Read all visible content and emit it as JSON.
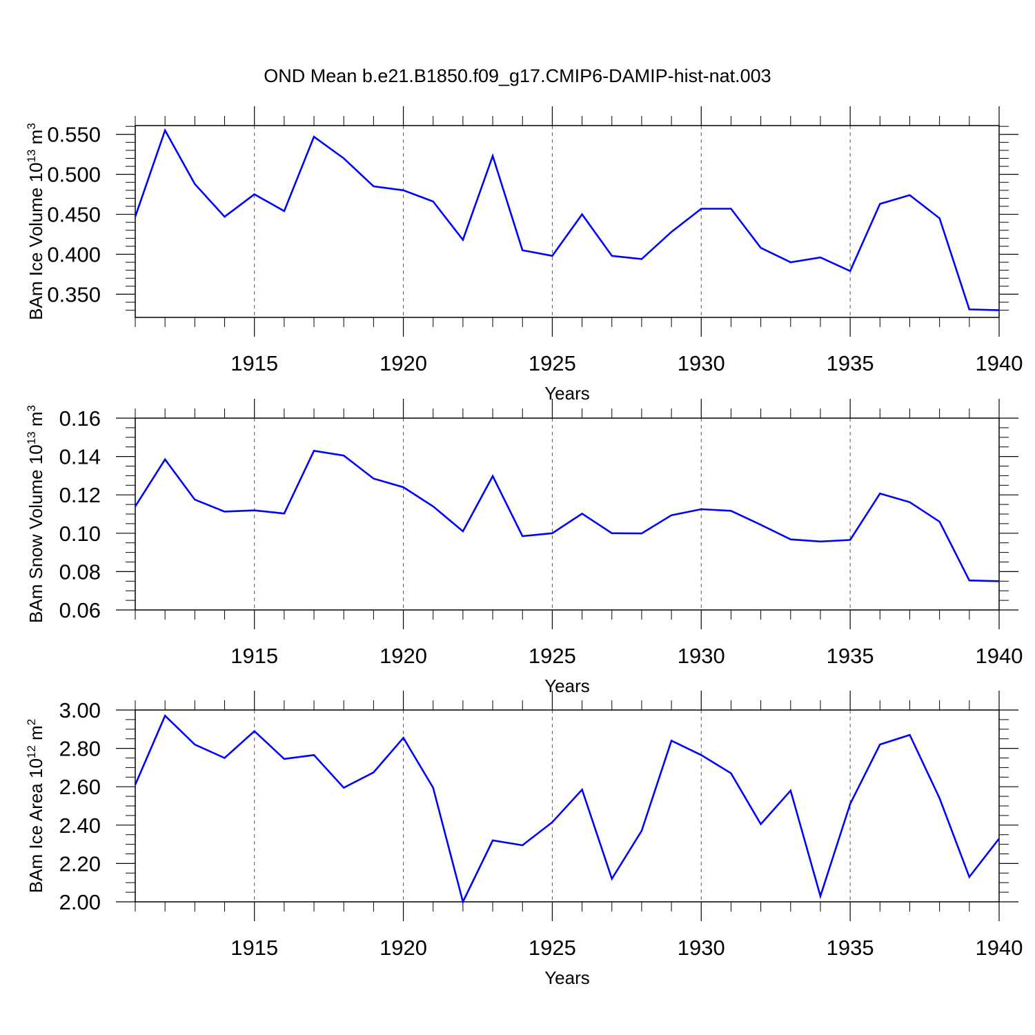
{
  "title": "OND Mean b.e21.B1850.f09_g17.CMIP6-DAMIP-hist-nat.003",
  "colors": {
    "line": "#0000ff",
    "axis": "#000000",
    "grid": "#555555",
    "background": "#ffffff"
  },
  "chart_data": [
    {
      "type": "line",
      "name": "ice-volume",
      "ylabel": {
        "main": "BAm Ice Volume 10",
        "exp": "13",
        "unit": " m",
        "unit_exp": "3"
      },
      "xlabel": "Years",
      "xlim": [
        1911,
        1940
      ],
      "ylim": [
        0.321,
        0.561
      ],
      "xticks": [
        1915,
        1920,
        1925,
        1930,
        1935,
        1940
      ],
      "yticks": [
        0.35,
        0.4,
        0.45,
        0.5,
        0.55
      ],
      "ytick_labels": [
        "0.350",
        "0.400",
        "0.450",
        "0.500",
        "0.550"
      ],
      "x_minor_step": 1,
      "y_minor_step": 0.01,
      "grid": "vertical dashed at major x ticks",
      "x": [
        1911,
        1912,
        1913,
        1914,
        1915,
        1916,
        1917,
        1918,
        1919,
        1920,
        1921,
        1922,
        1923,
        1924,
        1925,
        1926,
        1927,
        1928,
        1929,
        1930,
        1931,
        1932,
        1933,
        1934,
        1935,
        1936,
        1937,
        1938,
        1939,
        1940
      ],
      "values": [
        0.447,
        0.555,
        0.488,
        0.447,
        0.475,
        0.454,
        0.547,
        0.52,
        0.485,
        0.48,
        0.466,
        0.418,
        0.523,
        0.405,
        0.398,
        0.45,
        0.398,
        0.394,
        0.428,
        0.457,
        0.457,
        0.408,
        0.39,
        0.396,
        0.379,
        0.463,
        0.474,
        0.445,
        0.331,
        0.33
      ]
    },
    {
      "type": "line",
      "name": "snow-volume",
      "ylabel": {
        "main": "BAm Snow Volume 10",
        "exp": "13",
        "unit": " m",
        "unit_exp": "3"
      },
      "xlabel": "Years",
      "xlim": [
        1911,
        1940
      ],
      "ylim": [
        0.06,
        0.16
      ],
      "xticks": [
        1915,
        1920,
        1925,
        1930,
        1935,
        1940
      ],
      "yticks": [
        0.06,
        0.08,
        0.1,
        0.12,
        0.14,
        0.16
      ],
      "ytick_labels": [
        "0.06",
        "0.08",
        "0.10",
        "0.12",
        "0.14",
        "0.16"
      ],
      "x_minor_step": 1,
      "y_minor_step": 0.005,
      "grid": "vertical dashed at major x ticks",
      "x": [
        1911,
        1912,
        1913,
        1914,
        1915,
        1916,
        1917,
        1918,
        1919,
        1920,
        1921,
        1922,
        1923,
        1924,
        1925,
        1926,
        1927,
        1928,
        1929,
        1930,
        1931,
        1932,
        1933,
        1934,
        1935,
        1936,
        1937,
        1938,
        1939,
        1940
      ],
      "values": [
        0.114,
        0.1385,
        0.1175,
        0.1113,
        0.1119,
        0.1103,
        0.143,
        0.1405,
        0.1285,
        0.124,
        0.114,
        0.101,
        0.1298,
        0.0985,
        0.1,
        0.1102,
        0.1,
        0.0999,
        0.1094,
        0.1125,
        0.1117,
        0.1044,
        0.0968,
        0.0957,
        0.0965,
        0.1207,
        0.1162,
        0.106,
        0.0754,
        0.075
      ]
    },
    {
      "type": "line",
      "name": "ice-area",
      "ylabel": {
        "main": "BAm Ice Area 10",
        "exp": "12",
        "unit": " m",
        "unit_exp": "2"
      },
      "xlabel": "Years",
      "xlim": [
        1911,
        1940
      ],
      "ylim": [
        2.0,
        3.0
      ],
      "xticks": [
        1915,
        1920,
        1925,
        1930,
        1935,
        1940
      ],
      "yticks": [
        2.0,
        2.2,
        2.4,
        2.6,
        2.8,
        3.0
      ],
      "ytick_labels": [
        "2.00",
        "2.20",
        "2.40",
        "2.60",
        "2.80",
        "3.00"
      ],
      "x_minor_step": 1,
      "y_minor_step": 0.05,
      "grid": "vertical dashed at major x ticks",
      "x": [
        1911,
        1912,
        1913,
        1914,
        1915,
        1916,
        1917,
        1918,
        1919,
        1920,
        1921,
        1922,
        1923,
        1924,
        1925,
        1926,
        1927,
        1928,
        1929,
        1930,
        1931,
        1932,
        1933,
        1934,
        1935,
        1936,
        1937,
        1938,
        1939,
        1940
      ],
      "values": [
        2.61,
        2.97,
        2.82,
        2.75,
        2.89,
        2.745,
        2.765,
        2.595,
        2.675,
        2.855,
        2.595,
        2.0,
        2.32,
        2.295,
        2.415,
        2.585,
        2.12,
        2.37,
        2.84,
        2.765,
        2.67,
        2.405,
        2.58,
        2.03,
        2.51,
        2.82,
        2.87,
        2.54,
        2.13,
        2.33
      ]
    }
  ]
}
